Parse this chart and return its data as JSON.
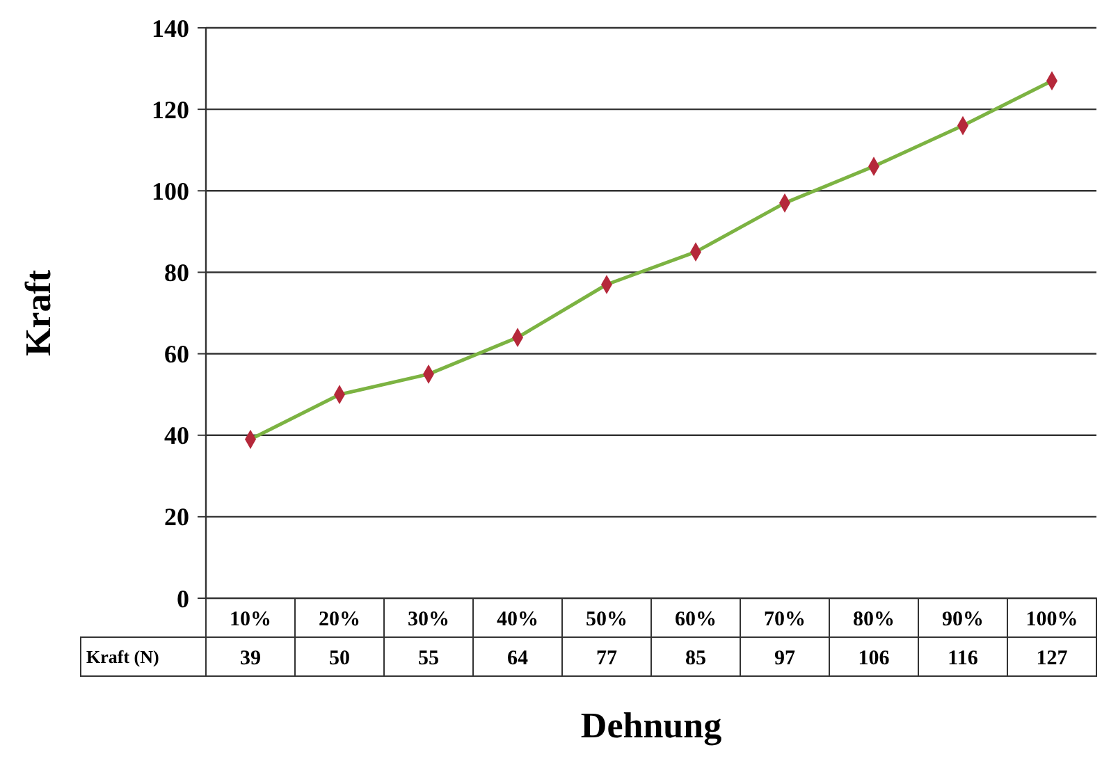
{
  "chart_data": {
    "type": "line",
    "xlabel": "Dehnung",
    "ylabel": "Kraft",
    "categories": [
      "10%",
      "20%",
      "30%",
      "40%",
      "50%",
      "60%",
      "70%",
      "80%",
      "90%",
      "100%"
    ],
    "series": [
      {
        "name": "Kraft (N)",
        "color": "#7cb342",
        "values": [
          39,
          50,
          55,
          64,
          77,
          85,
          97,
          106,
          116,
          127
        ]
      }
    ],
    "ylim": [
      0,
      140
    ],
    "yticks": [
      0,
      20,
      40,
      60,
      80,
      100,
      120,
      140
    ],
    "grid": "y",
    "marker": "diamond",
    "line_style": "solid",
    "data_labels": true
  }
}
